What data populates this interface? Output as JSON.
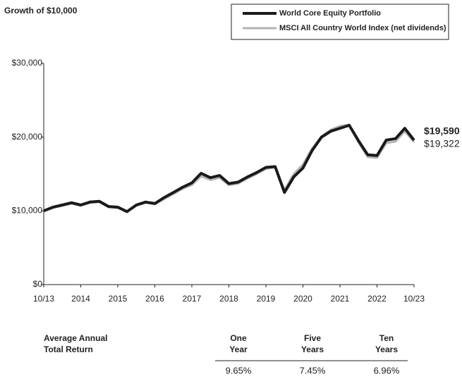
{
  "chart_data": {
    "type": "line",
    "title": "Growth of $10,000",
    "x": [
      2013.75,
      2014,
      2014.25,
      2014.5,
      2014.75,
      2015,
      2015.25,
      2015.5,
      2015.75,
      2016,
      2016.25,
      2016.5,
      2016.75,
      2017,
      2017.25,
      2017.5,
      2017.75,
      2018,
      2018.25,
      2018.5,
      2018.75,
      2019,
      2019.25,
      2019.5,
      2019.75,
      2020,
      2020.25,
      2020.5,
      2020.75,
      2021,
      2021.25,
      2021.5,
      2021.75,
      2022,
      2022.25,
      2022.5,
      2022.75,
      2023,
      2023.25,
      2023.5,
      2023.75
    ],
    "series": [
      {
        "name": "MSCI All Country World Index (net dividends)",
        "color": "#b3b3b3",
        "end_label": "$19,322",
        "values": [
          10000,
          10400,
          10700,
          11000,
          10700,
          11100,
          11200,
          10500,
          10400,
          9900,
          10700,
          11100,
          10900,
          11600,
          12300,
          13000,
          13500,
          14700,
          14200,
          14500,
          13500,
          13700,
          14400,
          15000,
          15700,
          15900,
          12800,
          15000,
          16300,
          18500,
          20100,
          21000,
          21500,
          21700,
          19300,
          17300,
          17200,
          19200,
          19400,
          20800,
          19322
        ]
      },
      {
        "name": "World Core Equity Portfolio",
        "color": "#1a1a1a",
        "end_label": "$19,590",
        "values": [
          10000,
          10500,
          10800,
          11100,
          10800,
          11200,
          11300,
          10600,
          10500,
          9900,
          10800,
          11200,
          11000,
          11800,
          12500,
          13200,
          13800,
          15100,
          14500,
          14800,
          13700,
          13900,
          14600,
          15200,
          15900,
          16000,
          12500,
          14600,
          15800,
          18200,
          20000,
          20800,
          21200,
          21600,
          19500,
          17600,
          17500,
          19600,
          19800,
          21200,
          19590
        ]
      }
    ],
    "xlim": [
      2013.75,
      2023.75
    ],
    "xticks": [
      {
        "value": 2013.75,
        "label": "10/13"
      },
      {
        "value": 2014.75,
        "label": "2014"
      },
      {
        "value": 2015.75,
        "label": "2015"
      },
      {
        "value": 2016.75,
        "label": "2016"
      },
      {
        "value": 2017.75,
        "label": "2017"
      },
      {
        "value": 2018.75,
        "label": "2018"
      },
      {
        "value": 2019.75,
        "label": "2019"
      },
      {
        "value": 2020.75,
        "label": "2020"
      },
      {
        "value": 2021.75,
        "label": "2021"
      },
      {
        "value": 2022.75,
        "label": "2022"
      },
      {
        "value": 2023.75,
        "label": "10/23"
      }
    ],
    "ylim": [
      0,
      30000
    ],
    "yticks": [
      {
        "value": 0,
        "label": "$0"
      },
      {
        "value": 10000,
        "label": "$10,000"
      },
      {
        "value": 20000,
        "label": "$20,000"
      },
      {
        "value": 30000,
        "label": "$30,000"
      }
    ],
    "legend": "top-right"
  },
  "table": {
    "columns": [
      [
        "Average Annual",
        "Total Return"
      ],
      [
        "One",
        "Year"
      ],
      [
        "Five",
        "Years"
      ],
      [
        "Ten",
        "Years"
      ]
    ],
    "values": [
      "9.65%",
      "7.45%",
      "6.96%"
    ]
  }
}
